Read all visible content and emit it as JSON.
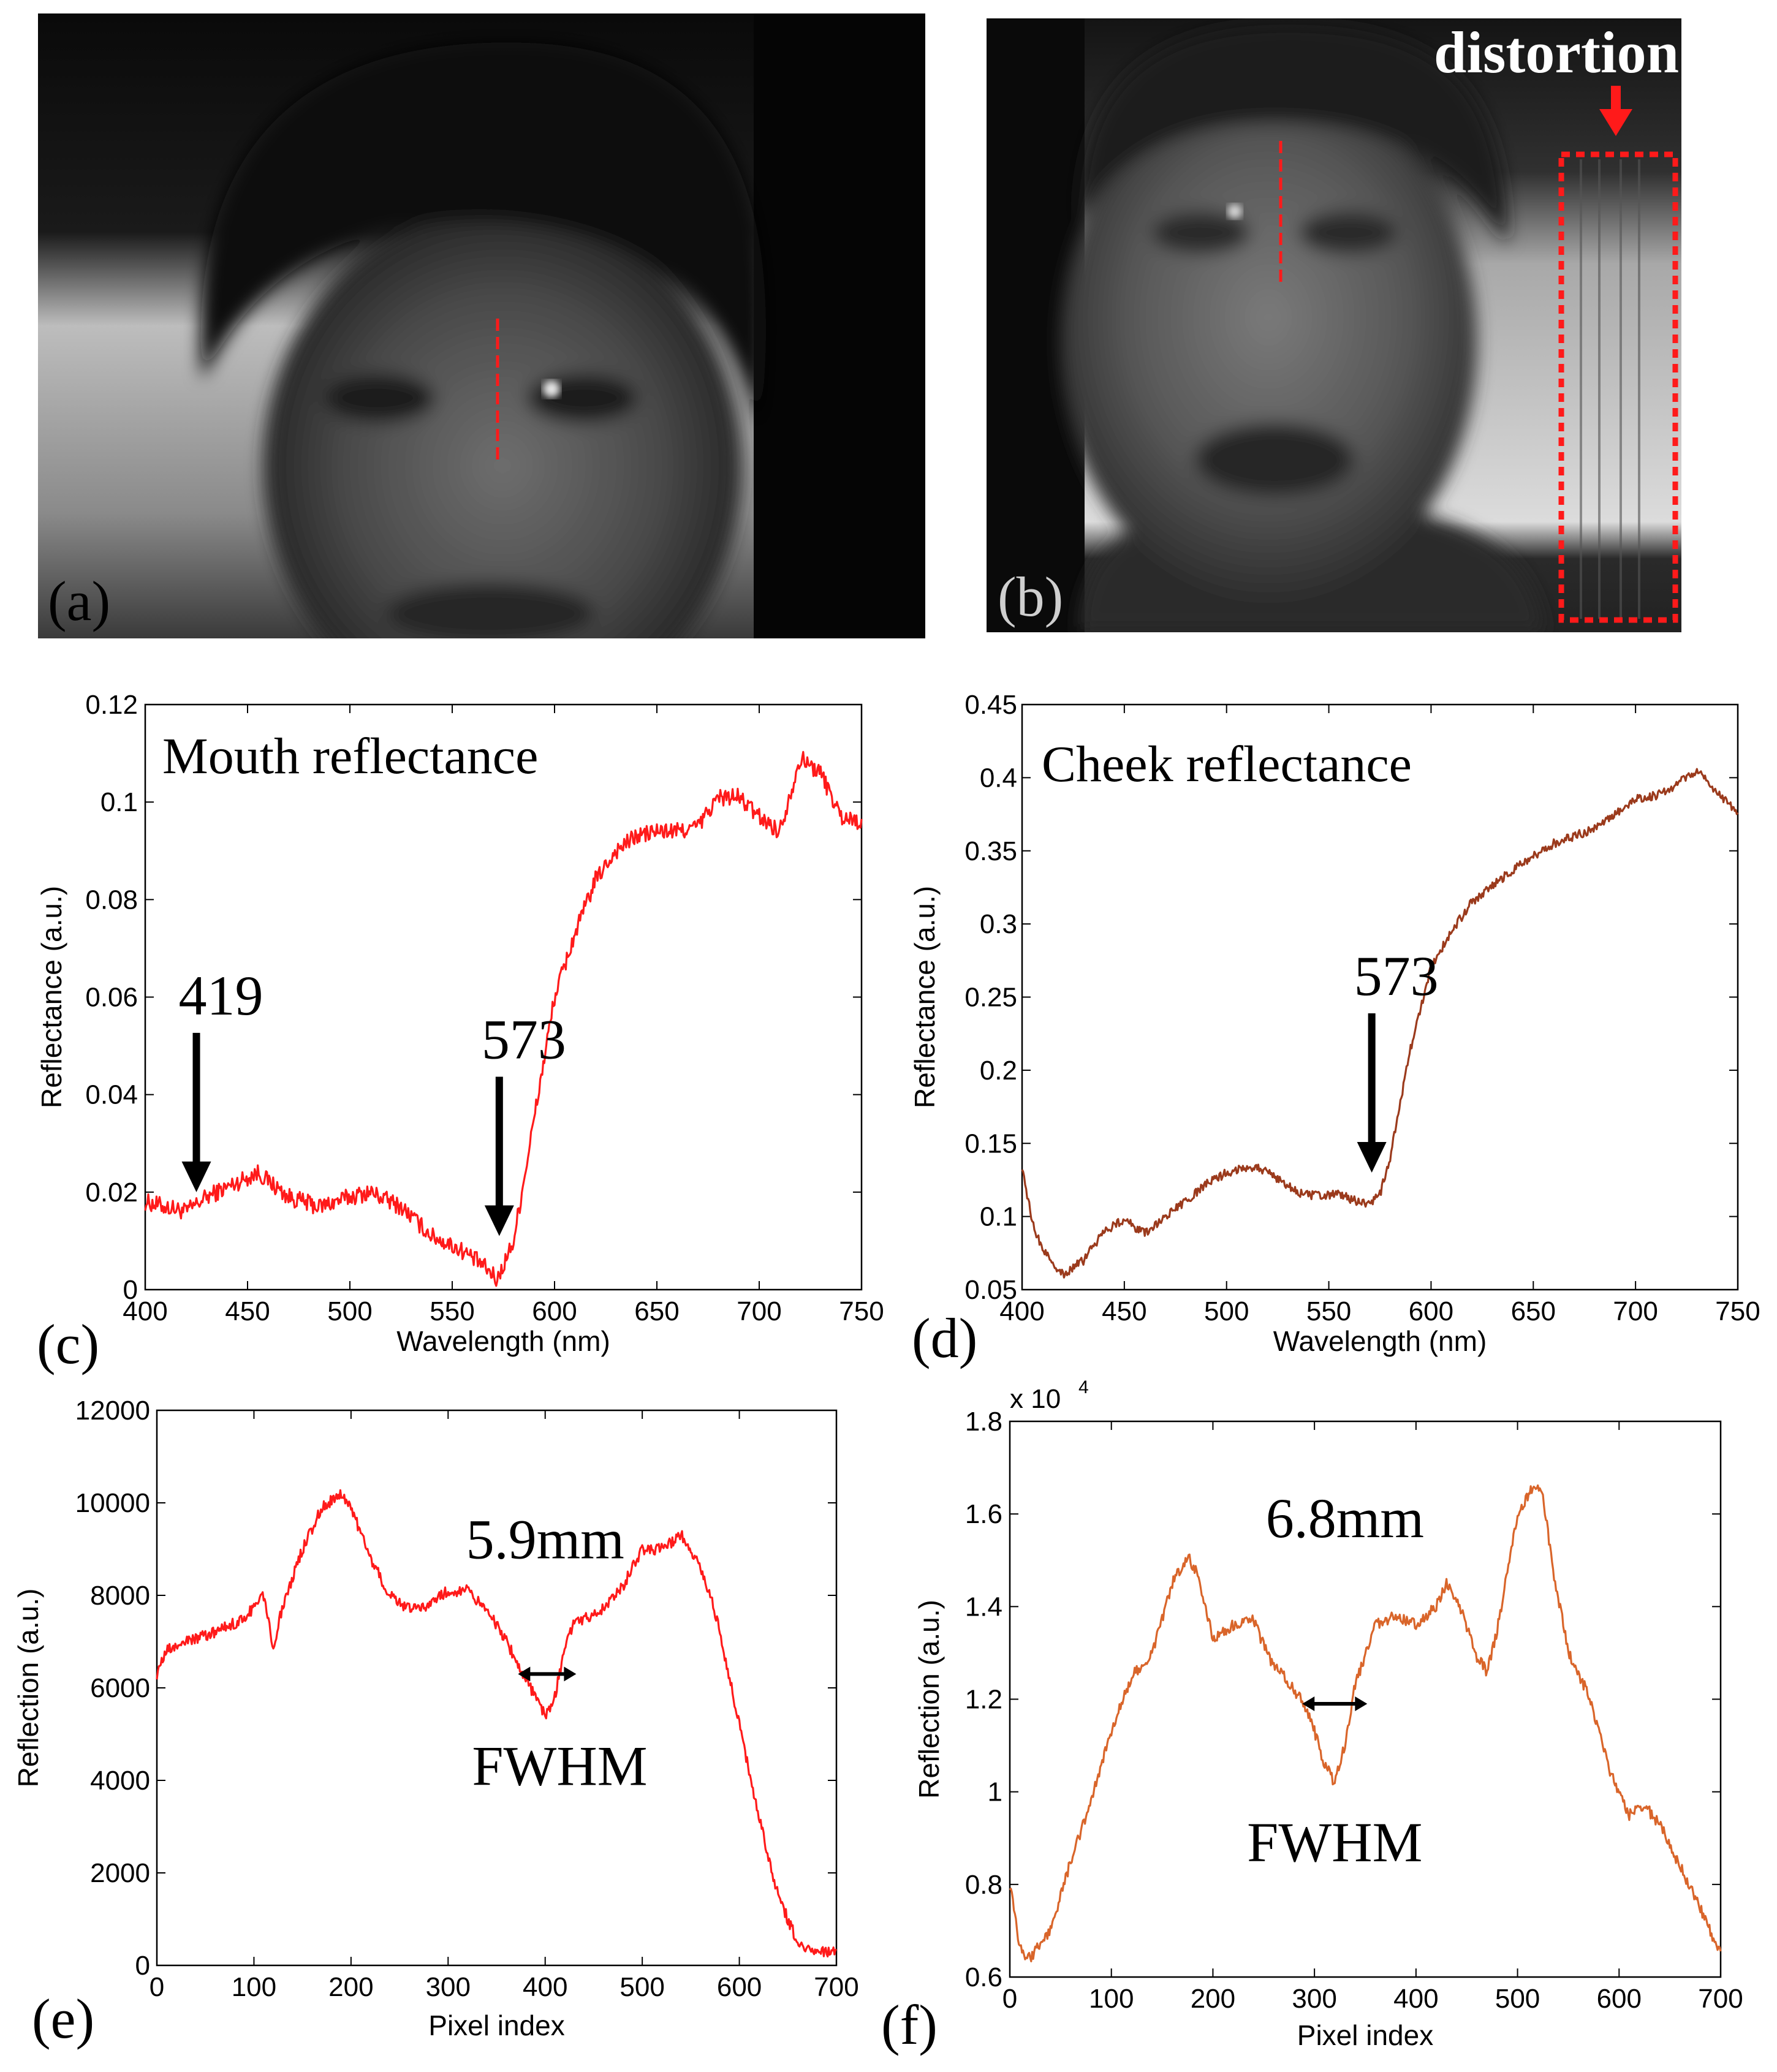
{
  "photos": [
    {
      "label": "(a)"
    },
    {
      "label": "(b)",
      "annotation": "distortion"
    }
  ],
  "colors": {
    "red": "#ff1a1a",
    "brown": "#9b3a1c",
    "orange": "#d9652a",
    "arrow": "#000000"
  },
  "chart_data": [
    {
      "type": "line",
      "panel_label": "(c)",
      "title": "Mouth reflectance",
      "xlabel": "Wavelength (nm)",
      "ylabel": "Reflectance (a.u.)",
      "xlim": [
        400,
        750
      ],
      "ylim": [
        0,
        0.12
      ],
      "xticks": [
        "400",
        "450",
        "500",
        "550",
        "600",
        "650",
        "700",
        "750"
      ],
      "yticks": [
        "0",
        "0.02",
        "0.04",
        "0.06",
        "0.08",
        "0.1",
        "0.12"
      ],
      "color": "#ff1a1a",
      "noise": 0.0018,
      "series": [
        {
          "name": "mouth",
          "x": [
            400,
            410,
            420,
            430,
            440,
            455,
            470,
            485,
            500,
            510,
            525,
            540,
            555,
            565,
            572,
            580,
            590,
            600,
            610,
            620,
            630,
            640,
            650,
            660,
            670,
            680,
            690,
            700,
            710,
            720,
            730,
            740,
            750
          ],
          "y": [
            0.018,
            0.017,
            0.016,
            0.019,
            0.021,
            0.024,
            0.019,
            0.017,
            0.019,
            0.02,
            0.017,
            0.011,
            0.008,
            0.005,
            0.002,
            0.01,
            0.035,
            0.06,
            0.073,
            0.084,
            0.09,
            0.093,
            0.094,
            0.094,
            0.095,
            0.101,
            0.101,
            0.097,
            0.094,
            0.109,
            0.106,
            0.097,
            0.096
          ]
        }
      ],
      "annotations": [
        {
          "text": "419",
          "x": 425,
          "y": 0.02
        },
        {
          "text": "573",
          "x": 573,
          "y": 0.011
        }
      ]
    },
    {
      "type": "line",
      "panel_label": "(d)",
      "title": "Cheek reflectance",
      "xlabel": "Wavelength (nm)",
      "ylabel": "Reflectance (a.u.)",
      "xlim": [
        400,
        750
      ],
      "ylim": [
        0.05,
        0.45
      ],
      "xticks": [
        "400",
        "450",
        "500",
        "550",
        "600",
        "650",
        "700",
        "750"
      ],
      "yticks": [
        "0.05",
        "0.1",
        "0.15",
        "0.2",
        "0.25",
        "0.3",
        "0.35",
        "0.4",
        "0.45"
      ],
      "color": "#9b3a1c",
      "noise": 0.003,
      "series": [
        {
          "name": "cheek",
          "x": [
            400,
            405,
            410,
            420,
            430,
            440,
            450,
            460,
            470,
            480,
            490,
            500,
            510,
            515,
            525,
            535,
            545,
            555,
            565,
            570,
            575,
            580,
            590,
            600,
            610,
            620,
            640,
            660,
            680,
            700,
            710,
            720,
            730,
            740,
            750
          ],
          "y": [
            0.135,
            0.095,
            0.078,
            0.06,
            0.07,
            0.09,
            0.098,
            0.088,
            0.1,
            0.11,
            0.122,
            0.13,
            0.134,
            0.134,
            0.126,
            0.116,
            0.114,
            0.115,
            0.11,
            0.108,
            0.115,
            0.14,
            0.215,
            0.27,
            0.295,
            0.315,
            0.337,
            0.355,
            0.365,
            0.385,
            0.388,
            0.395,
            0.405,
            0.39,
            0.375
          ]
        }
      ],
      "annotations": [
        {
          "text": "573",
          "x": 571,
          "y": 0.13
        }
      ]
    },
    {
      "type": "line",
      "panel_label": "(e)",
      "title": "",
      "xlabel": "Pixel index",
      "ylabel": "Reflection (a.u.)",
      "xlim": [
        0,
        700
      ],
      "ylim": [
        0,
        12000
      ],
      "xticks": [
        "0",
        "100",
        "200",
        "300",
        "400",
        "500",
        "600",
        "700"
      ],
      "yticks": [
        "0",
        "2000",
        "4000",
        "6000",
        "8000",
        "10000",
        "12000"
      ],
      "color": "#ff1a1a",
      "noise": 120,
      "series": [
        {
          "name": "profile",
          "x": [
            0,
            10,
            30,
            60,
            90,
            110,
            120,
            130,
            150,
            170,
            190,
            200,
            220,
            240,
            260,
            280,
            300,
            320,
            340,
            360,
            380,
            400,
            410,
            420,
            430,
            440,
            460,
            480,
            500,
            520,
            540,
            550,
            560,
            570,
            580,
            600,
            620,
            640,
            660,
            680,
            690,
            700
          ],
          "y": [
            6300,
            6800,
            7000,
            7200,
            7500,
            8000,
            6900,
            7800,
            9000,
            9900,
            10200,
            9900,
            8800,
            8000,
            7700,
            7800,
            8100,
            8100,
            7700,
            7000,
            6200,
            5400,
            5800,
            6900,
            7400,
            7500,
            7700,
            8200,
            9000,
            9000,
            9300,
            9000,
            8600,
            8000,
            7200,
            5200,
            3200,
            1500,
            500,
            300,
            300,
            300
          ]
        }
      ],
      "annotations": [
        {
          "text": "5.9mm",
          "x": 400,
          "y": 8800
        },
        {
          "text": "FWHM",
          "x": 415,
          "y": 3900
        }
      ],
      "fwhm_arrow": {
        "x1": 372,
        "x2": 432,
        "y": 6300
      }
    },
    {
      "type": "line",
      "panel_label": "(f)",
      "title": "",
      "xlabel": "Pixel index",
      "ylabel": "Reflection (a.u.)",
      "ylabel_scale": "x 10",
      "ylabel_scale_exp": "4",
      "xlim": [
        0,
        700
      ],
      "ylim": [
        0.6,
        1.8
      ],
      "xticks": [
        "0",
        "100",
        "200",
        "300",
        "400",
        "500",
        "600",
        "700"
      ],
      "yticks": [
        "0.6",
        "0.8",
        "1",
        "1.2",
        "1.4",
        "1.6",
        "1.8"
      ],
      "color": "#d9652a",
      "noise": 0.012,
      "series": [
        {
          "name": "profile",
          "x": [
            0,
            10,
            20,
            40,
            60,
            80,
            100,
            120,
            140,
            160,
            175,
            185,
            200,
            220,
            240,
            255,
            270,
            290,
            300,
            310,
            320,
            330,
            340,
            360,
            380,
            400,
            420,
            430,
            440,
            460,
            470,
            480,
            500,
            515,
            525,
            535,
            550,
            570,
            590,
            610,
            625,
            640,
            660,
            680,
            700
          ],
          "y": [
            0.8,
            0.66,
            0.64,
            0.7,
            0.85,
            0.98,
            1.13,
            1.25,
            1.3,
            1.45,
            1.51,
            1.47,
            1.33,
            1.36,
            1.37,
            1.29,
            1.25,
            1.19,
            1.13,
            1.06,
            1.02,
            1.1,
            1.23,
            1.36,
            1.38,
            1.36,
            1.4,
            1.45,
            1.42,
            1.29,
            1.26,
            1.35,
            1.6,
            1.66,
            1.64,
            1.48,
            1.3,
            1.21,
            1.05,
            0.95,
            0.97,
            0.93,
            0.84,
            0.75,
            0.65
          ]
        }
      ],
      "annotations": [
        {
          "text": "6.8mm",
          "x": 330,
          "y": 1.55
        },
        {
          "text": "FWHM",
          "x": 320,
          "y": 0.85
        }
      ],
      "fwhm_arrow": {
        "x1": 288,
        "x2": 352,
        "y": 1.19
      }
    }
  ]
}
